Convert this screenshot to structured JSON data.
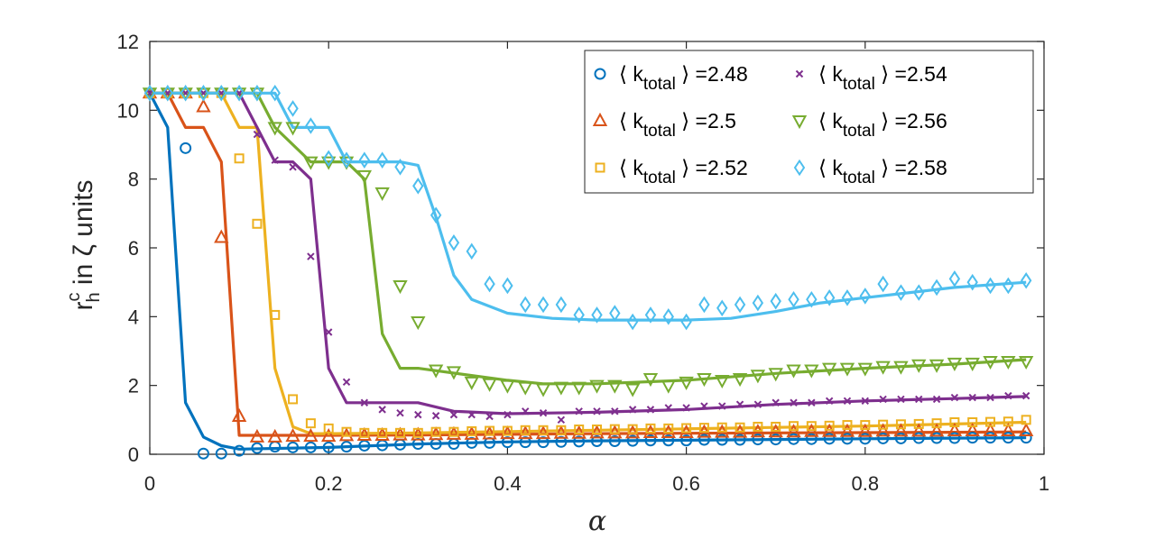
{
  "chart_data": {
    "type": "line",
    "xlabel": "α",
    "ylabel": "r_h^c in ζ units",
    "ylabel_parts": {
      "base": "r",
      "superscript": "c",
      "subscript": "h",
      "rest": " in ζ units"
    },
    "xlim": [
      0,
      1
    ],
    "ylim": [
      0,
      12
    ],
    "xticks": [
      0,
      0.2,
      0.4,
      0.6,
      0.8,
      1
    ],
    "xtick_labels": [
      "0",
      "0.2",
      "0.4",
      "0.6",
      "0.8",
      "1"
    ],
    "yticks": [
      0,
      2,
      4,
      6,
      8,
      10,
      12
    ],
    "ytick_labels": [
      "0",
      "2",
      "4",
      "6",
      "8",
      "10",
      "12"
    ],
    "grid": false,
    "legend_location": "top-right",
    "legend_columns": 2,
    "series": [
      {
        "name": "⟨ k_total ⟩ =2.48",
        "label": {
          "pre": "⟨ k",
          "sub": "total",
          "post": " ⟩ =2.48"
        },
        "color": "#0072BD",
        "marker": "circle",
        "points_x": [
          0.04,
          0.06,
          0.08,
          0.1,
          0.12,
          0.14,
          0.16,
          0.18,
          0.2,
          0.22,
          0.24,
          0.26,
          0.28,
          0.3,
          0.32,
          0.34,
          0.36,
          0.38,
          0.4,
          0.42,
          0.44,
          0.46,
          0.48,
          0.5,
          0.52,
          0.54,
          0.56,
          0.58,
          0.6,
          0.62,
          0.64,
          0.66,
          0.68,
          0.7,
          0.72,
          0.74,
          0.76,
          0.78,
          0.8,
          0.82,
          0.84,
          0.86,
          0.88,
          0.9,
          0.92,
          0.94,
          0.96,
          0.98
        ],
        "points_y": [
          8.9,
          0.02,
          0.02,
          0.1,
          0.18,
          0.22,
          0.2,
          0.2,
          0.2,
          0.22,
          0.25,
          0.26,
          0.28,
          0.3,
          0.3,
          0.3,
          0.33,
          0.33,
          0.35,
          0.35,
          0.35,
          0.36,
          0.37,
          0.38,
          0.38,
          0.39,
          0.4,
          0.4,
          0.4,
          0.42,
          0.42,
          0.42,
          0.43,
          0.43,
          0.44,
          0.44,
          0.45,
          0.45,
          0.45,
          0.46,
          0.46,
          0.47,
          0.47,
          0.47,
          0.48,
          0.48,
          0.48,
          0.48
        ],
        "line_x": [
          0,
          0.02,
          0.04,
          0.06,
          0.08,
          0.1,
          0.2,
          0.3,
          0.4,
          0.5,
          0.6,
          0.7,
          0.8,
          0.9,
          0.98
        ],
        "line_y": [
          10.5,
          9.5,
          1.5,
          0.5,
          0.25,
          0.15,
          0.2,
          0.3,
          0.36,
          0.39,
          0.41,
          0.43,
          0.45,
          0.47,
          0.48
        ]
      },
      {
        "name": "⟨ k_total ⟩ =2.5",
        "label": {
          "pre": "⟨ k",
          "sub": "total",
          "post": " ⟩ =2.5"
        },
        "color": "#D95319",
        "marker": "triangle-up",
        "points_x": [
          0,
          0.02,
          0.04,
          0.06,
          0.08,
          0.1,
          0.12,
          0.14,
          0.16,
          0.18,
          0.2,
          0.22,
          0.24,
          0.26,
          0.28,
          0.3,
          0.32,
          0.34,
          0.36,
          0.38,
          0.4,
          0.42,
          0.44,
          0.46,
          0.48,
          0.5,
          0.52,
          0.54,
          0.56,
          0.58,
          0.6,
          0.62,
          0.64,
          0.66,
          0.68,
          0.7,
          0.72,
          0.74,
          0.76,
          0.78,
          0.8,
          0.82,
          0.84,
          0.86,
          0.88,
          0.9,
          0.92,
          0.94,
          0.96,
          0.98
        ],
        "points_y": [
          10.5,
          10.5,
          10.5,
          10.1,
          6.3,
          1.1,
          0.5,
          0.5,
          0.52,
          0.52,
          0.52,
          0.54,
          0.55,
          0.55,
          0.56,
          0.56,
          0.57,
          0.58,
          0.58,
          0.59,
          0.6,
          0.6,
          0.6,
          0.61,
          0.61,
          0.62,
          0.62,
          0.62,
          0.63,
          0.63,
          0.63,
          0.64,
          0.64,
          0.64,
          0.65,
          0.65,
          0.65,
          0.66,
          0.66,
          0.66,
          0.66,
          0.67,
          0.67,
          0.67,
          0.67,
          0.68,
          0.68,
          0.68,
          0.68,
          0.68
        ],
        "line_x": [
          0,
          0.02,
          0.04,
          0.06,
          0.08,
          0.1,
          0.12,
          0.2,
          0.3,
          0.4,
          0.5,
          0.6,
          0.7,
          0.8,
          0.9,
          0.98
        ],
        "line_y": [
          10.5,
          10.5,
          9.5,
          9.5,
          8.5,
          0.55,
          0.55,
          0.55,
          0.56,
          0.58,
          0.6,
          0.61,
          0.62,
          0.63,
          0.64,
          0.65
        ]
      },
      {
        "name": "⟨ k_total ⟩ =2.52",
        "label": {
          "pre": "⟨ k",
          "sub": "total",
          "post": " ⟩ =2.52"
        },
        "color": "#EDB120",
        "marker": "square",
        "points_x": [
          0,
          0.02,
          0.04,
          0.06,
          0.08,
          0.1,
          0.12,
          0.14,
          0.16,
          0.18,
          0.2,
          0.22,
          0.24,
          0.26,
          0.28,
          0.3,
          0.32,
          0.34,
          0.36,
          0.38,
          0.4,
          0.42,
          0.44,
          0.46,
          0.48,
          0.5,
          0.52,
          0.54,
          0.56,
          0.58,
          0.6,
          0.62,
          0.64,
          0.66,
          0.68,
          0.7,
          0.72,
          0.74,
          0.76,
          0.78,
          0.8,
          0.82,
          0.84,
          0.86,
          0.88,
          0.9,
          0.92,
          0.94,
          0.96,
          0.98
        ],
        "points_y": [
          10.5,
          10.5,
          10.5,
          10.5,
          10.5,
          8.6,
          6.7,
          4.05,
          1.6,
          0.9,
          0.75,
          0.65,
          0.62,
          0.62,
          0.62,
          0.62,
          0.65,
          0.65,
          0.67,
          0.68,
          0.68,
          0.7,
          0.7,
          0.7,
          0.72,
          0.72,
          0.73,
          0.73,
          0.75,
          0.75,
          0.76,
          0.77,
          0.78,
          0.78,
          0.8,
          0.8,
          0.82,
          0.82,
          0.83,
          0.85,
          0.85,
          0.86,
          0.87,
          0.88,
          0.9,
          0.93,
          0.93,
          0.94,
          0.95,
          1.0
        ],
        "line_x": [
          0,
          0.08,
          0.1,
          0.12,
          0.14,
          0.16,
          0.18,
          0.2,
          0.3,
          0.4,
          0.5,
          0.6,
          0.7,
          0.8,
          0.9,
          0.98
        ],
        "line_y": [
          10.5,
          10.5,
          9.5,
          9.5,
          2.5,
          0.8,
          0.6,
          0.6,
          0.62,
          0.66,
          0.7,
          0.74,
          0.78,
          0.82,
          0.88,
          0.93
        ]
      },
      {
        "name": "⟨ k_total ⟩ =2.54",
        "label": {
          "pre": "⟨ k",
          "sub": "total",
          "post": " ⟩ =2.54"
        },
        "color": "#7E2F8E",
        "marker": "x",
        "points_x": [
          0,
          0.02,
          0.04,
          0.06,
          0.08,
          0.1,
          0.12,
          0.14,
          0.16,
          0.18,
          0.2,
          0.22,
          0.24,
          0.26,
          0.28,
          0.3,
          0.32,
          0.34,
          0.36,
          0.38,
          0.4,
          0.42,
          0.44,
          0.46,
          0.48,
          0.5,
          0.52,
          0.54,
          0.56,
          0.58,
          0.6,
          0.62,
          0.64,
          0.66,
          0.68,
          0.7,
          0.72,
          0.74,
          0.76,
          0.78,
          0.8,
          0.82,
          0.84,
          0.86,
          0.88,
          0.9,
          0.92,
          0.94,
          0.96,
          0.98
        ],
        "points_y": [
          10.5,
          10.5,
          10.5,
          10.5,
          10.5,
          10.5,
          9.3,
          8.55,
          8.35,
          5.75,
          3.55,
          2.1,
          1.5,
          1.3,
          1.2,
          1.15,
          1.12,
          1.15,
          1.15,
          1.1,
          1.15,
          1.25,
          1.2,
          1.0,
          1.25,
          1.25,
          1.25,
          1.3,
          1.3,
          1.35,
          1.35,
          1.4,
          1.4,
          1.45,
          1.45,
          1.5,
          1.5,
          1.5,
          1.55,
          1.55,
          1.55,
          1.6,
          1.6,
          1.6,
          1.6,
          1.65,
          1.65,
          1.65,
          1.7,
          1.7
        ],
        "line_x": [
          0,
          0.1,
          0.12,
          0.14,
          0.16,
          0.18,
          0.2,
          0.22,
          0.3,
          0.34,
          0.4,
          0.5,
          0.6,
          0.7,
          0.8,
          0.9,
          0.98
        ],
        "line_y": [
          10.5,
          10.5,
          9.5,
          8.5,
          8.5,
          8.0,
          2.5,
          1.5,
          1.5,
          1.25,
          1.18,
          1.22,
          1.3,
          1.45,
          1.55,
          1.62,
          1.68
        ]
      },
      {
        "name": "⟨ k_total ⟩ =2.56",
        "label": {
          "pre": "⟨ k",
          "sub": "total",
          "post": " ⟩ =2.56"
        },
        "color": "#77AC30",
        "marker": "triangle-down",
        "points_x": [
          0,
          0.02,
          0.04,
          0.06,
          0.08,
          0.1,
          0.12,
          0.14,
          0.16,
          0.18,
          0.2,
          0.22,
          0.24,
          0.26,
          0.28,
          0.3,
          0.32,
          0.34,
          0.36,
          0.38,
          0.4,
          0.42,
          0.44,
          0.46,
          0.48,
          0.5,
          0.52,
          0.54,
          0.56,
          0.58,
          0.6,
          0.62,
          0.64,
          0.66,
          0.68,
          0.7,
          0.72,
          0.74,
          0.76,
          0.78,
          0.8,
          0.82,
          0.84,
          0.86,
          0.88,
          0.9,
          0.92,
          0.94,
          0.96,
          0.98
        ],
        "points_y": [
          10.5,
          10.5,
          10.5,
          10.5,
          10.5,
          10.5,
          10.5,
          9.5,
          9.5,
          8.5,
          8.5,
          8.5,
          8.1,
          7.6,
          4.9,
          3.85,
          2.45,
          2.4,
          2.1,
          2.05,
          2.0,
          1.95,
          1.9,
          1.95,
          1.95,
          2.0,
          2.0,
          1.9,
          2.2,
          2.0,
          2.1,
          2.2,
          2.15,
          2.2,
          2.3,
          2.35,
          2.45,
          2.45,
          2.5,
          2.5,
          2.5,
          2.55,
          2.55,
          2.6,
          2.6,
          2.65,
          2.65,
          2.7,
          2.7,
          2.7
        ],
        "line_x": [
          0,
          0.12,
          0.14,
          0.18,
          0.2,
          0.22,
          0.24,
          0.26,
          0.28,
          0.3,
          0.4,
          0.44,
          0.5,
          0.6,
          0.7,
          0.8,
          0.9,
          0.98
        ],
        "line_y": [
          10.5,
          10.5,
          9.5,
          8.5,
          8.5,
          8.5,
          8.0,
          3.5,
          2.5,
          2.5,
          2.15,
          2.05,
          2.05,
          2.15,
          2.35,
          2.5,
          2.62,
          2.75
        ]
      },
      {
        "name": "⟨ k_total ⟩ =2.58",
        "label": {
          "pre": "⟨ k",
          "sub": "total",
          "post": " ⟩ =2.58"
        },
        "color": "#4DBEEE",
        "marker": "diamond",
        "points_x": [
          0,
          0.02,
          0.04,
          0.06,
          0.08,
          0.1,
          0.12,
          0.14,
          0.16,
          0.18,
          0.2,
          0.22,
          0.24,
          0.26,
          0.28,
          0.3,
          0.32,
          0.34,
          0.36,
          0.38,
          0.4,
          0.42,
          0.44,
          0.46,
          0.48,
          0.5,
          0.52,
          0.54,
          0.56,
          0.58,
          0.6,
          0.62,
          0.64,
          0.66,
          0.68,
          0.7,
          0.72,
          0.74,
          0.76,
          0.78,
          0.8,
          0.82,
          0.84,
          0.86,
          0.88,
          0.9,
          0.92,
          0.94,
          0.96,
          0.98
        ],
        "points_y": [
          10.5,
          10.5,
          10.5,
          10.5,
          10.5,
          10.5,
          10.5,
          10.5,
          10.05,
          9.55,
          8.6,
          8.55,
          8.55,
          8.55,
          8.35,
          7.8,
          6.95,
          6.15,
          5.9,
          4.95,
          4.9,
          4.35,
          4.35,
          4.35,
          4.05,
          4.05,
          4.1,
          3.85,
          4.05,
          4.0,
          3.85,
          4.35,
          4.25,
          4.35,
          4.4,
          4.45,
          4.5,
          4.5,
          4.55,
          4.55,
          4.6,
          4.95,
          4.7,
          4.7,
          4.85,
          5.1,
          5.0,
          4.9,
          4.9,
          5.05
        ],
        "line_x": [
          0,
          0.14,
          0.16,
          0.2,
          0.22,
          0.28,
          0.3,
          0.32,
          0.34,
          0.36,
          0.4,
          0.45,
          0.5,
          0.6,
          0.65,
          0.7,
          0.75,
          0.8,
          0.85,
          0.9,
          0.98
        ],
        "line_y": [
          10.5,
          10.5,
          9.5,
          9.5,
          8.5,
          8.5,
          8.4,
          6.9,
          5.2,
          4.5,
          4.1,
          3.95,
          3.9,
          3.9,
          3.95,
          4.15,
          4.4,
          4.55,
          4.7,
          4.85,
          5.0
        ]
      }
    ]
  }
}
